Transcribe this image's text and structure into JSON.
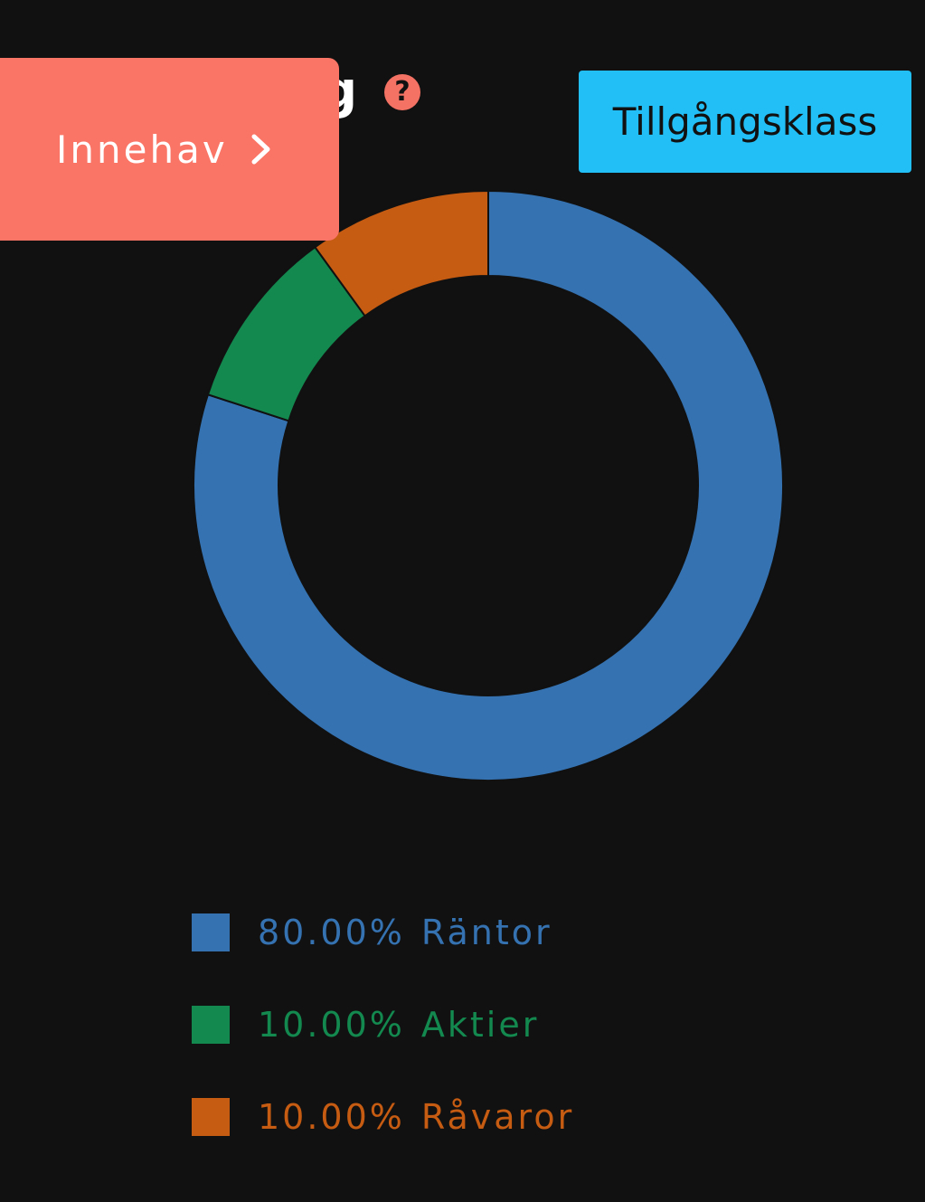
{
  "header": {
    "title": "g",
    "help_icon": "?"
  },
  "buttons": {
    "holdings": "Innehav",
    "asset_class": "Tillgångsklass"
  },
  "chart_data": {
    "type": "pie",
    "donut": true,
    "categories": [
      "Räntor",
      "Aktier",
      "Råvaror"
    ],
    "values": [
      80,
      10,
      10
    ],
    "value_labels": [
      "80.00%",
      "10.00%",
      "10.00%"
    ],
    "colors": [
      "#3572b1",
      "#13894f",
      "#c65b12"
    ]
  }
}
